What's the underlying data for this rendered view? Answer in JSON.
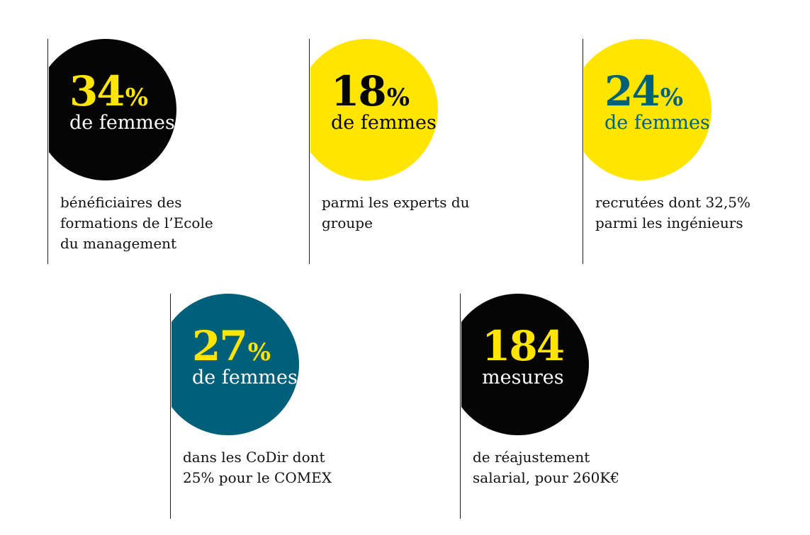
{
  "colors": {
    "black": "#050505",
    "yellow": "#ffe500",
    "teal": "#00607a",
    "white": "#ffffff"
  },
  "stats": [
    {
      "value": "34",
      "unit": "%",
      "subtitle": "de femmes",
      "description": [
        "bénéficiaires des",
        "formations de l’Ecole",
        "du management"
      ]
    },
    {
      "value": "18",
      "unit": "%",
      "subtitle": "de femmes",
      "description": [
        "parmi les experts du",
        "groupe"
      ]
    },
    {
      "value": "24",
      "unit": "%",
      "subtitle": "de femmes",
      "description": [
        "recrutées dont 32,5%",
        "parmi les ingénieurs"
      ]
    },
    {
      "value": "27",
      "unit": "%",
      "subtitle": "de femmes",
      "description": [
        "dans les CoDir dont",
        "25% pour le COMEX"
      ]
    },
    {
      "value": "184",
      "unit": "",
      "subtitle": "mesures",
      "description": [
        "de réajustement",
        "salarial, pour 260K€"
      ]
    }
  ]
}
